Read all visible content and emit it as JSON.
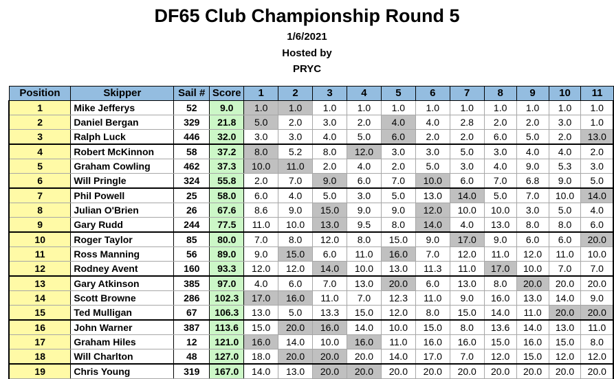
{
  "title": "DF65 Club Championship Round 5",
  "date": "1/6/2021",
  "hosted_by": "Hosted by",
  "club": "PRYC",
  "headers": {
    "position": "Position",
    "skipper": "Skipper",
    "sail": "Sail #",
    "score": "Score",
    "races": [
      "1",
      "2",
      "3",
      "4",
      "5",
      "6",
      "7",
      "8",
      "9",
      "10",
      "11"
    ]
  },
  "rows": [
    {
      "pos": "1",
      "skipper": "Mike Jefferys",
      "sail": "52",
      "score": "9.0",
      "races": [
        "1.0",
        "1.0",
        "1.0",
        "1.0",
        "1.0",
        "1.0",
        "1.0",
        "1.0",
        "1.0",
        "1.0",
        "1.0"
      ],
      "drops": [
        0,
        1
      ]
    },
    {
      "pos": "2",
      "skipper": "Daniel Bergan",
      "sail": "329",
      "score": "21.8",
      "races": [
        "5.0",
        "2.0",
        "3.0",
        "2.0",
        "4.0",
        "4.0",
        "2.8",
        "2.0",
        "2.0",
        "3.0",
        "1.0"
      ],
      "drops": [
        0,
        4
      ]
    },
    {
      "pos": "3",
      "skipper": "Ralph Luck",
      "sail": "446",
      "score": "32.0",
      "races": [
        "3.0",
        "3.0",
        "4.0",
        "5.0",
        "6.0",
        "2.0",
        "2.0",
        "6.0",
        "5.0",
        "2.0",
        "13.0"
      ],
      "drops": [
        4,
        10
      ]
    },
    {
      "pos": "4",
      "skipper": "Robert McKinnon",
      "sail": "58",
      "score": "37.2",
      "races": [
        "8.0",
        "5.2",
        "8.0",
        "12.0",
        "3.0",
        "3.0",
        "5.0",
        "3.0",
        "4.0",
        "4.0",
        "2.0"
      ],
      "drops": [
        0,
        3
      ]
    },
    {
      "pos": "5",
      "skipper": "Graham Cowling",
      "sail": "462",
      "score": "37.3",
      "races": [
        "10.0",
        "11.0",
        "2.0",
        "4.0",
        "2.0",
        "5.0",
        "3.0",
        "4.0",
        "9.0",
        "5.3",
        "3.0"
      ],
      "drops": [
        0,
        1
      ]
    },
    {
      "pos": "6",
      "skipper": "Will Pringle",
      "sail": "324",
      "score": "55.8",
      "races": [
        "2.0",
        "7.0",
        "9.0",
        "6.0",
        "7.0",
        "10.0",
        "6.0",
        "7.0",
        "6.8",
        "9.0",
        "5.0"
      ],
      "drops": [
        2,
        5
      ]
    },
    {
      "pos": "7",
      "skipper": "Phil Powell",
      "sail": "25",
      "score": "58.0",
      "races": [
        "6.0",
        "4.0",
        "5.0",
        "3.0",
        "5.0",
        "13.0",
        "14.0",
        "5.0",
        "7.0",
        "10.0",
        "14.0"
      ],
      "drops": [
        6,
        10
      ]
    },
    {
      "pos": "8",
      "skipper": "Julian O'Brien",
      "sail": "26",
      "score": "67.6",
      "races": [
        "8.6",
        "9.0",
        "15.0",
        "9.0",
        "9.0",
        "12.0",
        "10.0",
        "10.0",
        "3.0",
        "5.0",
        "4.0"
      ],
      "drops": [
        2,
        5
      ]
    },
    {
      "pos": "9",
      "skipper": "Gary Rudd",
      "sail": "244",
      "score": "77.5",
      "races": [
        "11.0",
        "10.0",
        "13.0",
        "9.5",
        "8.0",
        "14.0",
        "4.0",
        "13.0",
        "8.0",
        "8.0",
        "6.0"
      ],
      "drops": [
        2,
        5
      ]
    },
    {
      "pos": "10",
      "skipper": "Roger Taylor",
      "sail": "85",
      "score": "80.0",
      "races": [
        "7.0",
        "8.0",
        "12.0",
        "8.0",
        "15.0",
        "9.0",
        "17.0",
        "9.0",
        "6.0",
        "6.0",
        "20.0"
      ],
      "drops": [
        6,
        10
      ]
    },
    {
      "pos": "11",
      "skipper": "Ross Manning",
      "sail": "56",
      "score": "89.0",
      "races": [
        "9.0",
        "15.0",
        "6.0",
        "11.0",
        "16.0",
        "7.0",
        "12.0",
        "11.0",
        "12.0",
        "11.0",
        "10.0"
      ],
      "drops": [
        1,
        4
      ]
    },
    {
      "pos": "12",
      "skipper": "Rodney Avent",
      "sail": "160",
      "score": "93.3",
      "races": [
        "12.0",
        "12.0",
        "14.0",
        "10.0",
        "13.0",
        "11.3",
        "11.0",
        "17.0",
        "10.0",
        "7.0",
        "7.0"
      ],
      "drops": [
        2,
        7
      ]
    },
    {
      "pos": "13",
      "skipper": "Gary Atkinson",
      "sail": "385",
      "score": "97.0",
      "races": [
        "4.0",
        "6.0",
        "7.0",
        "13.0",
        "20.0",
        "6.0",
        "13.0",
        "8.0",
        "20.0",
        "20.0",
        "20.0"
      ],
      "drops": [
        4,
        8
      ]
    },
    {
      "pos": "14",
      "skipper": "Scott Browne",
      "sail": "286",
      "score": "102.3",
      "races": [
        "17.0",
        "16.0",
        "11.0",
        "7.0",
        "12.3",
        "11.0",
        "9.0",
        "16.0",
        "13.0",
        "14.0",
        "9.0"
      ],
      "drops": [
        0,
        1
      ]
    },
    {
      "pos": "15",
      "skipper": "Ted Mulligan",
      "sail": "67",
      "score": "106.3",
      "races": [
        "13.0",
        "5.0",
        "13.3",
        "15.0",
        "12.0",
        "8.0",
        "15.0",
        "14.0",
        "11.0",
        "20.0",
        "20.0"
      ],
      "drops": [
        9,
        10
      ]
    },
    {
      "pos": "16",
      "skipper": "John Warner",
      "sail": "387",
      "score": "113.6",
      "races": [
        "15.0",
        "20.0",
        "16.0",
        "14.0",
        "10.0",
        "15.0",
        "8.0",
        "13.6",
        "14.0",
        "13.0",
        "11.0"
      ],
      "drops": [
        1,
        2
      ]
    },
    {
      "pos": "17",
      "skipper": "Graham Hiles",
      "sail": "12",
      "score": "121.0",
      "races": [
        "16.0",
        "14.0",
        "10.0",
        "16.0",
        "11.0",
        "16.0",
        "16.0",
        "15.0",
        "16.0",
        "15.0",
        "8.0"
      ],
      "drops": [
        0,
        3
      ]
    },
    {
      "pos": "18",
      "skipper": "Will Charlton",
      "sail": "48",
      "score": "127.0",
      "races": [
        "18.0",
        "20.0",
        "20.0",
        "20.0",
        "14.0",
        "17.0",
        "7.0",
        "12.0",
        "15.0",
        "12.0",
        "12.0"
      ],
      "drops": [
        1,
        2
      ]
    },
    {
      "pos": "19",
      "skipper": "Chris Young",
      "sail": "319",
      "score": "167.0",
      "races": [
        "14.0",
        "13.0",
        "20.0",
        "20.0",
        "20.0",
        "20.0",
        "20.0",
        "20.0",
        "20.0",
        "20.0",
        "20.0"
      ],
      "drops": [
        2,
        3
      ]
    }
  ]
}
